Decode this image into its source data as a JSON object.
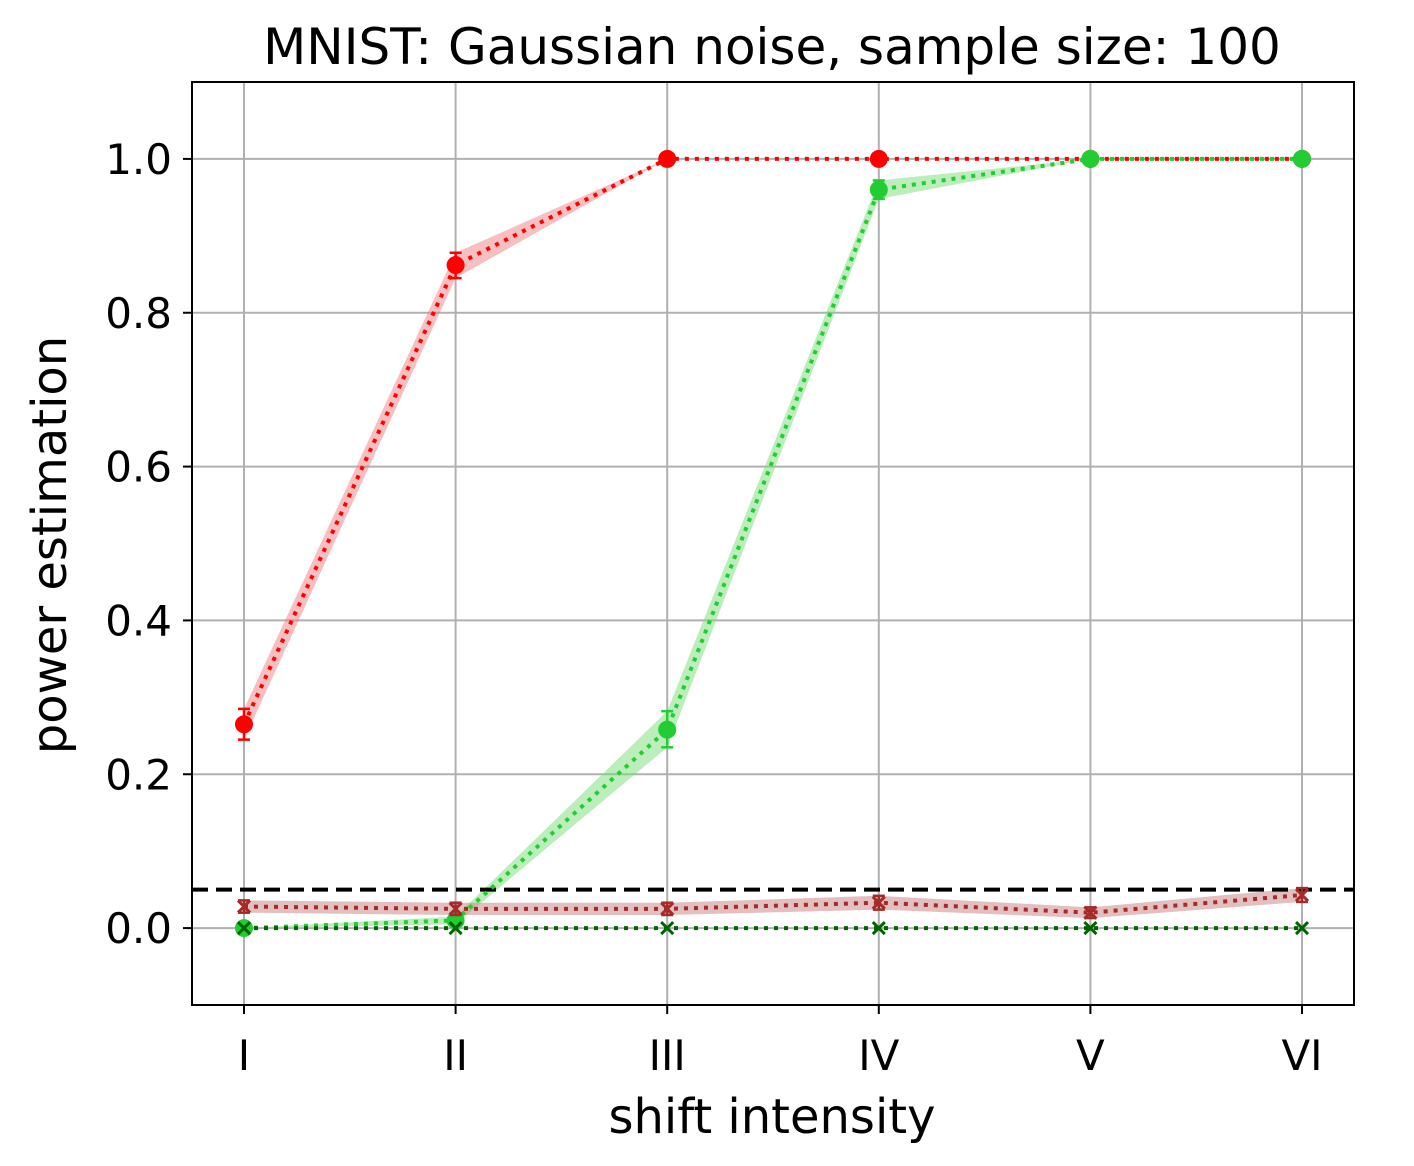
{
  "chart_data": {
    "type": "line",
    "title": "MNIST: Gaussian noise, sample size: 100",
    "xlabel": "shift intensity",
    "ylabel": "power estimation",
    "categories": [
      "I",
      "II",
      "III",
      "IV",
      "V",
      "VI"
    ],
    "yticks": [
      "0.0",
      "0.2",
      "0.4",
      "0.6",
      "0.8",
      "1.0"
    ],
    "ylim": [
      -0.1,
      1.1
    ],
    "grid": true,
    "legend": "none",
    "reference_line": {
      "y": 0.05,
      "style": "dashed",
      "color": "#000000"
    },
    "series": [
      {
        "marker": "circle",
        "color": "#ff0000",
        "band_color": "#f08080",
        "values": [
          0.265,
          0.862,
          1.0,
          1.0,
          1.0,
          1.0
        ],
        "band": [
          [
            0.245,
            0.285
          ],
          [
            0.845,
            0.878
          ],
          [
            1.0,
            1.0
          ],
          [
            1.0,
            1.0
          ],
          [
            1.0,
            1.0
          ],
          [
            1.0,
            1.0
          ]
        ]
      },
      {
        "marker": "circle",
        "color": "#22cc33",
        "band_color": "#77dd77",
        "values": [
          0.0,
          0.01,
          0.258,
          0.96,
          1.0,
          1.0
        ],
        "band": [
          [
            0.0,
            0.0
          ],
          [
            0.005,
            0.015
          ],
          [
            0.235,
            0.282
          ],
          [
            0.948,
            0.972
          ],
          [
            1.0,
            1.0
          ],
          [
            1.0,
            1.0
          ]
        ]
      },
      {
        "marker": "x",
        "color": "#a52a2a",
        "band_color": "#c98080",
        "values": [
          0.028,
          0.025,
          0.025,
          0.033,
          0.02,
          0.043
        ],
        "band": [
          [
            0.02,
            0.036
          ],
          [
            0.017,
            0.033
          ],
          [
            0.017,
            0.033
          ],
          [
            0.024,
            0.042
          ],
          [
            0.013,
            0.027
          ],
          [
            0.034,
            0.052
          ]
        ]
      },
      {
        "marker": "x",
        "color": "#006400",
        "band_color": "#006400",
        "values": [
          0.0,
          0.0,
          0.0,
          0.0,
          0.0,
          0.0
        ],
        "band": [
          [
            0.0,
            0.0
          ],
          [
            0.0,
            0.0
          ],
          [
            0.0,
            0.0
          ],
          [
            0.0,
            0.0
          ],
          [
            0.0,
            0.0
          ],
          [
            0.0,
            0.0
          ]
        ]
      }
    ]
  }
}
